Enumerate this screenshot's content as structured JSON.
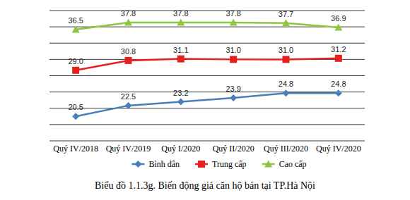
{
  "chart_data": {
    "type": "line",
    "title": "Biểu đồ 1.1.3g. Biến động giá căn hộ bán tại TP.Hà Nội",
    "categories": [
      "Quý IV/2018",
      "Quý IV/2019",
      "Quý I/2020",
      "Quý II/2020",
      "Quý III/2020",
      "Quý IV/2020"
    ],
    "series": [
      {
        "name": "Bình dân",
        "color": "#4a7ebb",
        "marker": "diamond",
        "values": [
          20.5,
          22.5,
          23.2,
          23.9,
          24.8,
          24.8
        ]
      },
      {
        "name": "Trung cấp",
        "color": "#e5211d",
        "marker": "square",
        "values": [
          29.0,
          30.8,
          31.1,
          31.0,
          31.0,
          31.2
        ],
        "value_labels": [
          "29.0",
          "30.8",
          "31.1",
          "31.0",
          "31.0",
          "31.2"
        ]
      },
      {
        "name": "Cao cấp",
        "color": "#8dc63f",
        "marker": "triangle",
        "values": [
          36.5,
          37.8,
          37.8,
          37.8,
          37.7,
          36.9
        ]
      }
    ],
    "ylim": [
      16,
      40
    ],
    "yticks": [
      16,
      19,
      22,
      25,
      28,
      31,
      34,
      37,
      40
    ],
    "grid": true,
    "data_labels": true,
    "legend": "bottom",
    "tick_labels": "x"
  }
}
